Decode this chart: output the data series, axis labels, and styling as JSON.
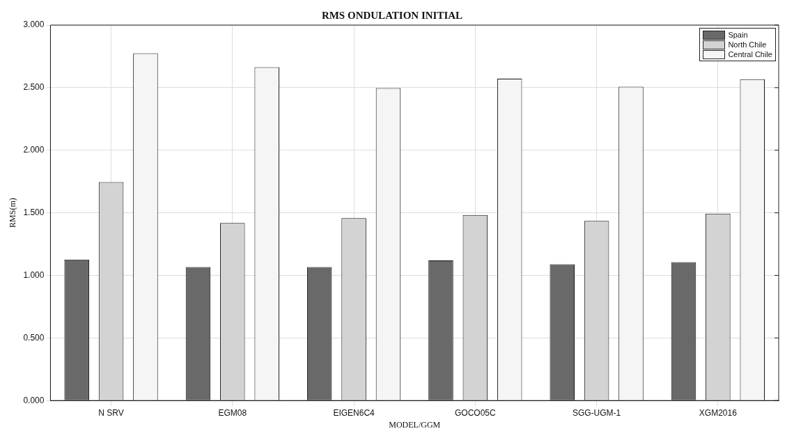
{
  "chart_data": {
    "type": "bar",
    "title": "RMS ONDULATION INITIAL",
    "xlabel": "MODEL/GGM",
    "ylabel": "RMS(m)",
    "categories": [
      "N SRV",
      "EGM08",
      "EIGEN6C4",
      "GOCO05C",
      "SGG-UGM-1",
      "XGM2016"
    ],
    "series": [
      {
        "name": "Spain",
        "color": "#696969",
        "values": [
          1.126,
          1.067,
          1.067,
          1.12,
          1.089,
          1.105
        ]
      },
      {
        "name": "North Chile",
        "color": "#d3d3d3",
        "values": [
          1.745,
          1.419,
          1.457,
          1.483,
          1.435,
          1.494
        ]
      },
      {
        "name": "Central Chile",
        "color": "#f5f5f5",
        "values": [
          2.775,
          2.663,
          2.497,
          2.572,
          2.508,
          2.567
        ]
      }
    ],
    "ylim": [
      0,
      3
    ],
    "yticks": [
      {
        "value": 0,
        "label": "0.000"
      },
      {
        "value": 0.5,
        "label": "0.500"
      },
      {
        "value": 1,
        "label": "1.000"
      },
      {
        "value": 1.5,
        "label": "1.500"
      },
      {
        "value": 2,
        "label": "2.000"
      },
      {
        "value": 2.5,
        "label": "2.500"
      },
      {
        "value": 3,
        "label": "3.000"
      }
    ],
    "grid": true,
    "legend": "top right"
  }
}
